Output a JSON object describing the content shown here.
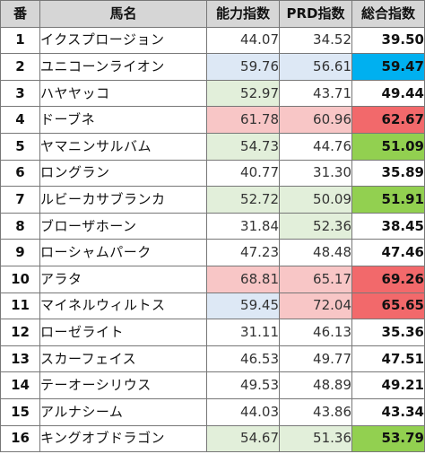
{
  "headers": {
    "no": "番",
    "name": "馬名",
    "ability": "能力指数",
    "prd": "PRD指数",
    "total": "総合指数"
  },
  "colors": {
    "blue_light": "#dde8f5",
    "green_light": "#e2efda",
    "red_light": "#f8c6c6",
    "blue_strong": "#00b0f0",
    "green_strong": "#92d050",
    "red_strong": "#f2696b",
    "white": "#ffffff"
  },
  "rows": [
    {
      "no": "1",
      "name": "イクスプロージョン",
      "ability": "44.07",
      "prd": "34.52",
      "total": "39.50",
      "ability_bg": "white",
      "prd_bg": "white",
      "total_bg": "white"
    },
    {
      "no": "2",
      "name": "ユニコーンライオン",
      "ability": "59.76",
      "prd": "56.61",
      "total": "59.47",
      "ability_bg": "blue_light",
      "prd_bg": "blue_light",
      "total_bg": "blue_strong"
    },
    {
      "no": "3",
      "name": "ハヤヤッコ",
      "ability": "52.97",
      "prd": "43.71",
      "total": "49.44",
      "ability_bg": "green_light",
      "prd_bg": "white",
      "total_bg": "white"
    },
    {
      "no": "4",
      "name": "ドーブネ",
      "ability": "61.78",
      "prd": "60.96",
      "total": "62.67",
      "ability_bg": "red_light",
      "prd_bg": "red_light",
      "total_bg": "red_strong"
    },
    {
      "no": "5",
      "name": "ヤマニンサルバム",
      "ability": "54.73",
      "prd": "44.76",
      "total": "51.09",
      "ability_bg": "green_light",
      "prd_bg": "white",
      "total_bg": "green_strong"
    },
    {
      "no": "6",
      "name": "ロングラン",
      "ability": "40.77",
      "prd": "31.30",
      "total": "35.89",
      "ability_bg": "white",
      "prd_bg": "white",
      "total_bg": "white"
    },
    {
      "no": "7",
      "name": "ルビーカサブランカ",
      "ability": "52.72",
      "prd": "50.09",
      "total": "51.91",
      "ability_bg": "green_light",
      "prd_bg": "green_light",
      "total_bg": "green_strong"
    },
    {
      "no": "8",
      "name": "ブローザホーン",
      "ability": "31.84",
      "prd": "52.36",
      "total": "38.45",
      "ability_bg": "white",
      "prd_bg": "green_light",
      "total_bg": "white"
    },
    {
      "no": "9",
      "name": "ローシャムパーク",
      "ability": "47.23",
      "prd": "48.48",
      "total": "47.46",
      "ability_bg": "white",
      "prd_bg": "white",
      "total_bg": "white"
    },
    {
      "no": "10",
      "name": "アラタ",
      "ability": "68.81",
      "prd": "65.17",
      "total": "69.26",
      "ability_bg": "red_light",
      "prd_bg": "red_light",
      "total_bg": "red_strong"
    },
    {
      "no": "11",
      "name": "マイネルウィルトス",
      "ability": "59.45",
      "prd": "72.04",
      "total": "65.65",
      "ability_bg": "blue_light",
      "prd_bg": "red_light",
      "total_bg": "red_strong"
    },
    {
      "no": "12",
      "name": "ローゼライト",
      "ability": "31.11",
      "prd": "46.13",
      "total": "35.36",
      "ability_bg": "white",
      "prd_bg": "white",
      "total_bg": "white"
    },
    {
      "no": "13",
      "name": "スカーフェイス",
      "ability": "46.53",
      "prd": "49.77",
      "total": "47.51",
      "ability_bg": "white",
      "prd_bg": "white",
      "total_bg": "white"
    },
    {
      "no": "14",
      "name": "テーオーシリウス",
      "ability": "49.53",
      "prd": "48.89",
      "total": "49.21",
      "ability_bg": "white",
      "prd_bg": "white",
      "total_bg": "white"
    },
    {
      "no": "15",
      "name": "アルナシーム",
      "ability": "44.03",
      "prd": "43.86",
      "total": "43.34",
      "ability_bg": "white",
      "prd_bg": "white",
      "total_bg": "white"
    },
    {
      "no": "16",
      "name": "キングオブドラゴン",
      "ability": "54.67",
      "prd": "51.36",
      "total": "53.79",
      "ability_bg": "green_light",
      "prd_bg": "green_light",
      "total_bg": "green_strong"
    }
  ]
}
